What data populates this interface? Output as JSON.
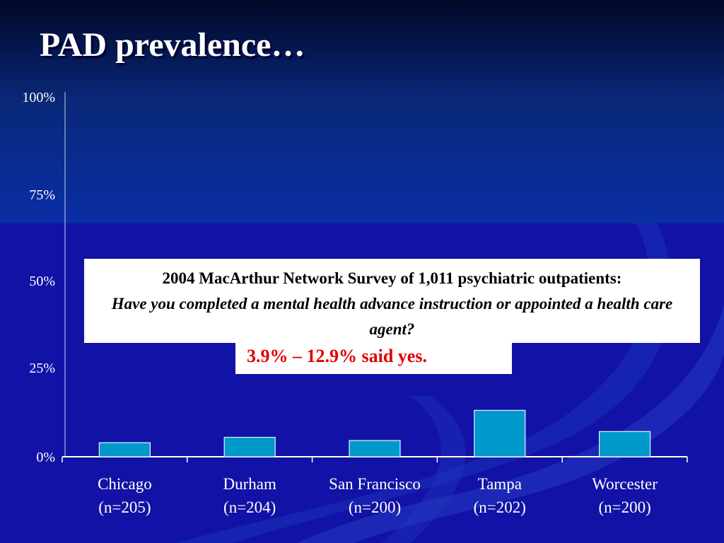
{
  "slide": {
    "title": "PAD prevalence…"
  },
  "survey": {
    "line1": "2004 MacArthur Network Survey of 1,011 psychiatric outpatients:",
    "line2": "Have you completed a mental health advance instruction or appointed a health care agent?"
  },
  "result": {
    "text": "3.9% – 12.9% said yes."
  },
  "colors": {
    "bar_fill": "#0099cc",
    "bar_stroke": "#e8f4ff",
    "text": "#ffffff",
    "result_text": "#e00000"
  },
  "chart_data": {
    "type": "bar",
    "categories": [
      "Chicago\n(n=205)",
      "Durham\n(n=204)",
      "San Francisco\n(n=200)",
      "Tampa\n(n=202)",
      "Worcester\n(n=200)"
    ],
    "values": [
      3.9,
      5.4,
      4.5,
      12.9,
      7.0
    ],
    "yticks": [
      0,
      25,
      50,
      75,
      100
    ],
    "ytick_labels": [
      "0%",
      "25%",
      "50%",
      "75%",
      "100%"
    ],
    "ylim": [
      0,
      100
    ],
    "grid": false,
    "legend": "none"
  }
}
